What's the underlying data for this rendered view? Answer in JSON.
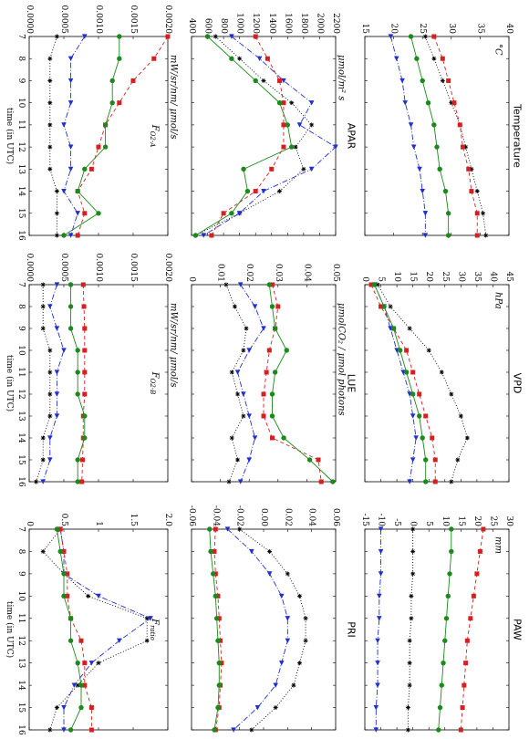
{
  "chart_data": [
    {
      "type": "line",
      "title": "Temperature",
      "ylabel": "°C",
      "x": [
        7,
        8,
        9,
        10,
        11,
        12,
        13,
        14,
        15,
        16
      ],
      "xlim": [
        7,
        16
      ],
      "xticks": [
        7,
        8,
        9,
        10,
        11,
        12,
        13,
        14,
        15,
        16
      ],
      "ylim": [
        15,
        40
      ],
      "yticks": [
        15,
        20,
        25,
        30,
        35,
        40
      ],
      "series": [
        {
          "color": "#000000",
          "marker": "star",
          "dash": "dotted",
          "values": [
            25.5,
            27,
            28.5,
            30,
            31.5,
            32.5,
            33.5,
            34.5,
            35.5,
            36
          ]
        },
        {
          "color": "#1f2fd0",
          "marker": "triangle",
          "dash": "dashdot",
          "values": [
            19.5,
            20.5,
            21.5,
            22,
            23,
            23.5,
            24.5,
            25,
            25.5,
            25.5
          ]
        },
        {
          "color": "#d62020",
          "marker": "square",
          "dash": "dashed",
          "values": [
            27,
            28.5,
            29.5,
            30.5,
            31.5,
            32,
            33,
            33.5,
            34.5,
            34.5
          ]
        },
        {
          "color": "#1a8a1a",
          "marker": "circle",
          "dash": "solid",
          "values": [
            23,
            24,
            25,
            26,
            27,
            27.5,
            28,
            29,
            29.5,
            29.5
          ]
        }
      ]
    },
    {
      "type": "line",
      "title": "VPD",
      "ylabel": "hPa",
      "x": [
        7,
        8,
        9,
        10,
        11,
        12,
        13,
        14,
        15,
        16
      ],
      "xlim": [
        7,
        16
      ],
      "xticks": [
        7,
        8,
        9,
        10,
        11,
        12,
        13,
        14,
        15,
        16
      ],
      "ylim": [
        0,
        45
      ],
      "yticks": [
        0,
        5,
        10,
        15,
        20,
        25,
        30,
        35,
        40,
        45
      ],
      "series": [
        {
          "color": "#000000",
          "marker": "star",
          "dash": "dotted",
          "values": [
            4,
            8,
            14,
            20,
            24,
            27,
            30,
            32,
            29,
            27
          ]
        },
        {
          "color": "#1f2fd0",
          "marker": "triangle",
          "dash": "dashdot",
          "values": [
            3,
            6,
            8,
            10,
            12,
            14,
            15,
            16,
            15,
            14
          ]
        },
        {
          "color": "#d62020",
          "marker": "square",
          "dash": "dashed",
          "values": [
            2,
            5,
            9,
            13,
            15,
            17,
            19,
            21,
            22,
            22
          ]
        },
        {
          "color": "#1a8a1a",
          "marker": "circle",
          "dash": "solid",
          "values": [
            3,
            6,
            9,
            11,
            13,
            15,
            17,
            18,
            19,
            19
          ]
        }
      ]
    },
    {
      "type": "line",
      "title": "PAW",
      "ylabel": "mm",
      "x": [
        7,
        8,
        9,
        10,
        11,
        12,
        13,
        14,
        15,
        16
      ],
      "xlim": [
        7,
        16
      ],
      "xticks": [
        7,
        8,
        9,
        10,
        11,
        12,
        13,
        14,
        15,
        16
      ],
      "ylim": [
        -15,
        30
      ],
      "yticks": [
        -15,
        -10,
        -5,
        0,
        5,
        10,
        15,
        20,
        25,
        30
      ],
      "series": [
        {
          "color": "#000000",
          "marker": "star",
          "dash": "dotted",
          "values": [
            0,
            0,
            0,
            -0.5,
            -0.5,
            -1,
            -1,
            -1,
            -1.5,
            -1.5
          ]
        },
        {
          "color": "#1f2fd0",
          "marker": "triangle",
          "dash": "dashdot",
          "values": [
            -10,
            -10,
            -10,
            -10.5,
            -10.5,
            -11,
            -11,
            -11,
            -11.5,
            -11.5
          ]
        },
        {
          "color": "#d62020",
          "marker": "square",
          "dash": "dashed",
          "values": [
            22,
            21,
            20,
            19,
            18,
            17,
            16.5,
            16,
            15.5,
            15
          ]
        },
        {
          "color": "#1a8a1a",
          "marker": "circle",
          "dash": "solid",
          "values": [
            12,
            12,
            11.5,
            11,
            10.5,
            10,
            9.5,
            9,
            8.5,
            8
          ]
        }
      ]
    },
    {
      "type": "line",
      "title": "APAR",
      "ylabel": "μmol/m² s",
      "x": [
        7,
        8,
        9,
        10,
        11,
        12,
        13,
        14,
        15,
        16
      ],
      "xlim": [
        7,
        16
      ],
      "xticks": [
        7,
        8,
        9,
        10,
        11,
        12,
        13,
        14,
        15,
        16
      ],
      "ylim": [
        400,
        2200
      ],
      "yticks": [
        400,
        600,
        800,
        1000,
        1200,
        1400,
        1600,
        1800,
        2000,
        2200
      ],
      "series": [
        {
          "color": "#000000",
          "marker": "star",
          "dash": "dotted",
          "values": [
            700,
            1000,
            1300,
            1650,
            1900,
            1700,
            1800,
            1500,
            1000,
            450
          ]
        },
        {
          "color": "#1f2fd0",
          "marker": "triangle",
          "dash": "dashdot",
          "values": [
            900,
            1250,
            1550,
            1900,
            1750,
            2200,
            1900,
            1300,
            1000,
            550
          ]
        },
        {
          "color": "#d62020",
          "marker": "square",
          "dash": "dashed",
          "values": [
            1200,
            1350,
            1500,
            1550,
            1550,
            1550,
            1400,
            1200,
            800,
            650
          ]
        },
        {
          "color": "#1a8a1a",
          "marker": "circle",
          "dash": "solid",
          "values": [
            600,
            900,
            1200,
            1500,
            1600,
            1650,
            1050,
            1100,
            900,
            450
          ]
        }
      ]
    },
    {
      "type": "line",
      "title": "LUE",
      "ylabel": "μmolCO₂ / μmol photons",
      "x": [
        7,
        8,
        9,
        10,
        11,
        12,
        13,
        14,
        15,
        16
      ],
      "xlim": [
        7,
        16
      ],
      "xticks": [
        7,
        8,
        9,
        10,
        11,
        12,
        13,
        14,
        15,
        16
      ],
      "ylim": [
        0,
        0.05
      ],
      "yticks": [
        0,
        0.01,
        0.02,
        0.03,
        0.04,
        0.05
      ],
      "series": [
        {
          "color": "#000000",
          "marker": "star",
          "dash": "dotted",
          "values": [
            0.012,
            0.015,
            0.019,
            0.018,
            0.014,
            0.016,
            0.018,
            0.014,
            0.016,
            0.013
          ]
        },
        {
          "color": "#1f2fd0",
          "marker": "triangle",
          "dash": "dashdot",
          "values": [
            0.017,
            0.022,
            0.025,
            0.02,
            0.016,
            0.018,
            0.02,
            0.022,
            0.02,
            0.017
          ]
        },
        {
          "color": "#d62020",
          "marker": "square",
          "dash": "dashed",
          "values": [
            0.028,
            0.03,
            0.029,
            0.027,
            0.026,
            0.025,
            0.025,
            0.028,
            0.044,
            0.045
          ]
        },
        {
          "color": "#1a8a1a",
          "marker": "circle",
          "dash": "solid",
          "values": [
            0.027,
            0.028,
            0.029,
            0.033,
            0.029,
            0.028,
            0.028,
            0.032,
            0.041,
            0.049
          ]
        }
      ]
    },
    {
      "type": "line",
      "title": "PRI",
      "x": [
        7,
        8,
        9,
        10,
        11,
        12,
        13,
        14,
        15,
        16
      ],
      "xlim": [
        7,
        16
      ],
      "xticks": [
        7,
        8,
        9,
        10,
        11,
        12,
        13,
        14,
        15,
        16
      ],
      "ylim": [
        -0.06,
        0.06
      ],
      "yticks": [
        -0.06,
        -0.04,
        -0.02,
        {
          "value": 0,
          "label": "0.00"
        },
        0.02,
        0.04,
        0.06
      ],
      "series": [
        {
          "color": "#000000",
          "marker": "star",
          "dash": "dotted",
          "values": [
            -0.02,
            0.005,
            0.02,
            0.03,
            0.035,
            0.035,
            0.03,
            0.025,
            0.01,
            -0.01
          ]
        },
        {
          "color": "#1f2fd0",
          "marker": "triangle",
          "dash": "dashdot",
          "values": [
            -0.03,
            -0.01,
            0.005,
            0.015,
            0.02,
            0.02,
            0.015,
            0.01,
            -0.005,
            -0.025
          ]
        },
        {
          "color": "#d62020",
          "marker": "square",
          "dash": "dashed",
          "values": [
            -0.04,
            -0.041,
            -0.04,
            -0.038,
            -0.037,
            -0.036,
            -0.035,
            -0.036,
            -0.037,
            -0.04
          ]
        },
        {
          "color": "#1a8a1a",
          "marker": "circle",
          "dash": "solid",
          "values": [
            -0.045,
            -0.044,
            -0.042,
            -0.04,
            -0.039,
            -0.038,
            -0.037,
            -0.037,
            -0.038,
            -0.041
          ]
        }
      ]
    },
    {
      "type": "line",
      "panel_label": {
        "text": "F",
        "sub": "O2-A"
      },
      "ylabel": "mW/sr/nm/ μmol/s",
      "xlabel": "time (in UTC)",
      "x": [
        7,
        8,
        9,
        10,
        11,
        12,
        13,
        14,
        15,
        16
      ],
      "xlim": [
        7,
        16
      ],
      "xticks": [
        7,
        8,
        9,
        10,
        11,
        12,
        13,
        14,
        15,
        16
      ],
      "ylim": [
        0,
        0.002
      ],
      "yticks": [
        {
          "value": 0,
          "label": "0.0000"
        },
        0.0005,
        {
          "value": 0.001,
          "label": "0.0010"
        },
        0.0015,
        {
          "value": 0.002,
          "label": "0.0020"
        }
      ],
      "series": [
        {
          "color": "#000000",
          "marker": "star",
          "dash": "dotted",
          "values": [
            0.0004,
            0.0003,
            0.0003,
            0.0003,
            0.0003,
            0.0003,
            0.0003,
            0.0004,
            0.0004,
            0.0004
          ]
        },
        {
          "color": "#1f2fd0",
          "marker": "triangle",
          "dash": "dashdot",
          "values": [
            0.0008,
            0.0006,
            0.0006,
            0.0006,
            0.0005,
            0.0006,
            0.0006,
            0.0005,
            0.0007,
            0.0006
          ]
        },
        {
          "color": "#d62020",
          "marker": "square",
          "dash": "dashed",
          "values": [
            0.002,
            0.0018,
            0.0015,
            0.0013,
            0.0011,
            0.001,
            0.0009,
            0.0007,
            0.0008,
            0.0007
          ]
        },
        {
          "color": "#1a8a1a",
          "marker": "circle",
          "dash": "solid",
          "values": [
            0.0013,
            0.0013,
            0.0012,
            0.0012,
            0.0011,
            0.0011,
            0.0008,
            0.0007,
            0.001,
            0.0005
          ]
        }
      ]
    },
    {
      "type": "line",
      "panel_label": {
        "text": "F",
        "sub": "O2-B"
      },
      "ylabel": "mW/sr/nm/ μmol/s",
      "xlabel": "time (in UTC)",
      "x": [
        7,
        8,
        9,
        10,
        11,
        12,
        13,
        14,
        15,
        16
      ],
      "xlim": [
        7,
        16
      ],
      "xticks": [
        7,
        8,
        9,
        10,
        11,
        12,
        13,
        14,
        15,
        16
      ],
      "ylim": [
        0,
        0.002
      ],
      "yticks": [
        {
          "value": 0,
          "label": "0.0000"
        },
        0.0005,
        {
          "value": 0.001,
          "label": "0.0010"
        },
        0.0015,
        {
          "value": 0.002,
          "label": "0.0020"
        }
      ],
      "series": [
        {
          "color": "#000000",
          "marker": "star",
          "dash": "dotted",
          "values": [
            0.0002,
            0.0002,
            0.0002,
            0.0003,
            0.0003,
            0.0003,
            0.0003,
            0.0002,
            0.0002,
            0.0001
          ]
        },
        {
          "color": "#1f2fd0",
          "marker": "triangle",
          "dash": "dashdot",
          "values": [
            0.0004,
            0.0003,
            0.0004,
            0.0005,
            0.0004,
            0.0004,
            0.0004,
            0.0003,
            0.0003,
            0.0002
          ]
        },
        {
          "color": "#d62020",
          "marker": "square",
          "dash": "dashed",
          "values": [
            0.00078,
            0.00079,
            0.0008,
            0.0008,
            0.0008,
            0.0008,
            0.00078,
            0.00078,
            0.00077,
            0.00076
          ]
        },
        {
          "color": "#1a8a1a",
          "marker": "circle",
          "dash": "solid",
          "values": [
            0.0006,
            0.0006,
            0.0006,
            0.0007,
            0.0007,
            0.0007,
            0.0008,
            0.0008,
            0.0007,
            0.0007
          ]
        }
      ]
    },
    {
      "type": "line",
      "panel_label": {
        "text": "F",
        "sub": "ratio"
      },
      "xlabel": "time (in UTC)",
      "x": [
        7,
        8,
        9,
        10,
        11,
        12,
        13,
        14,
        15,
        16
      ],
      "xlim": [
        7,
        16
      ],
      "xticks": [
        7,
        8,
        9,
        10,
        11,
        12,
        13,
        14,
        15,
        16
      ],
      "ylim": [
        0,
        2
      ],
      "yticks": [
        0,
        0.5,
        1,
        1.5,
        {
          "value": 2,
          "label": "2.0"
        }
      ],
      "series": [
        {
          "color": "#000000",
          "marker": "star",
          "dash": "dotted",
          "values": [
            0.45,
            0.2,
            0.5,
            0.85,
            1.7,
            1.7,
            1.0,
            0.7,
            0.4,
            0.3
          ]
        },
        {
          "color": "#1f2fd0",
          "marker": "triangle",
          "dash": "dashdot",
          "values": [
            0.45,
            0.5,
            0.5,
            1.0,
            1.75,
            1.3,
            0.9,
            0.65,
            0.5,
            0.5
          ]
        },
        {
          "color": "#d62020",
          "marker": "square",
          "dash": "dashed",
          "values": [
            0.45,
            0.5,
            0.55,
            0.55,
            0.6,
            0.75,
            0.8,
            0.8,
            0.9,
            0.9
          ]
        },
        {
          "color": "#1a8a1a",
          "marker": "circle",
          "dash": "solid",
          "values": [
            0.4,
            0.45,
            0.5,
            0.5,
            0.6,
            0.6,
            0.7,
            0.75,
            0.75,
            0.6
          ]
        }
      ]
    }
  ]
}
